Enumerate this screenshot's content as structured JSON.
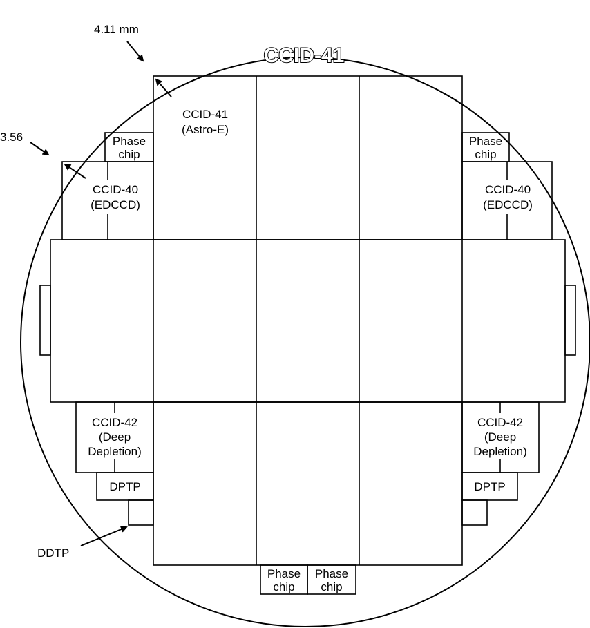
{
  "title": "CCID-41",
  "dimension_top": "4.11 mm",
  "dimension_left": "3.56",
  "center_die_label": {
    "line1": "CCID-41",
    "line2": "(Astro-E)"
  },
  "phase_chip": {
    "line1": "Phase",
    "line2": "chip"
  },
  "ccid40": {
    "line1": "CCID-40",
    "line2": "(EDCCD)"
  },
  "ccid42": {
    "line1": "CCID-42",
    "line2": "(Deep",
    "line3": "Depletion)"
  },
  "dptp": "DPTP",
  "ddtp": "DDTP",
  "colors": {
    "main_die": "#e3eedf",
    "edccd": "#f2e8df",
    "deep_depletion": "#dde1ec",
    "outline": "#000000"
  }
}
